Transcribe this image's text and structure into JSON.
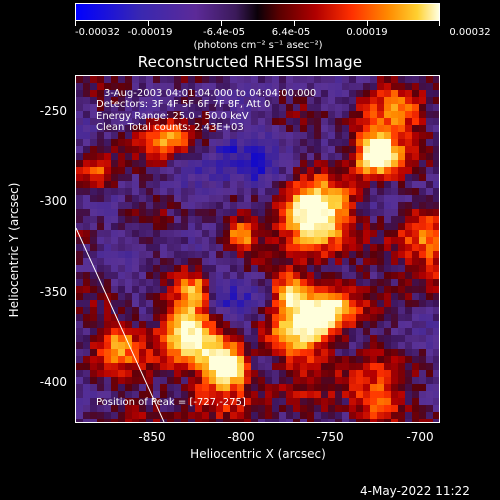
{
  "colorbar": {
    "ticks": [
      "-0.00032",
      "-0.00019",
      "-6.4e-05",
      "6.4e-05",
      "0.00019",
      "0.00032"
    ],
    "units": "(photons cm⁻² s⁻¹ asec⁻²)"
  },
  "title": "Reconstructed RHESSI Image",
  "annotations": {
    "time_range": "3-Aug-2003 04:01:04.000 to 04:04:00.000",
    "detectors": "Detectors: 3F 4F 5F 6F 7F 8F, Att 0",
    "energy": "Energy Range: 25.0 - 50.0 keV",
    "clean": "Clean     Total counts: 2.43E+03",
    "peak": "Position of Peak = [-727,-275]"
  },
  "axes": {
    "xlabel": "Heliocentric X (arcsec)",
    "ylabel": "Heliocentric Y (arcsec)",
    "xticks": [
      "-850",
      "-800",
      "-750",
      "-700"
    ],
    "yticks": [
      "-250",
      "-300",
      "-350",
      "-400"
    ]
  },
  "timestamp": "4-May-2022 11:22"
}
